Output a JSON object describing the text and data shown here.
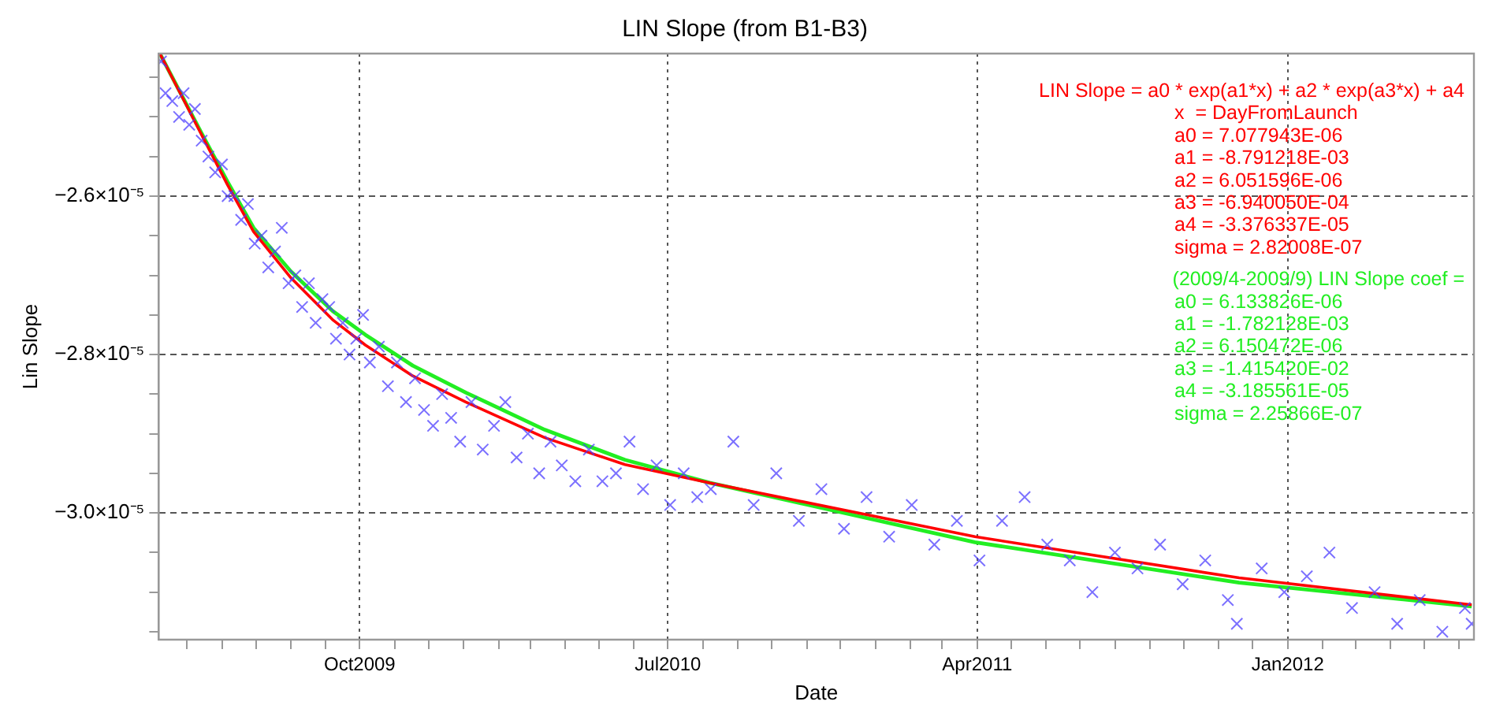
{
  "chart_data": {
    "type": "scatter",
    "title": "LIN Slope (from B1-B3)",
    "xlabel": "Date",
    "ylabel": "Lin Slope",
    "xlim": [
      "2009-04-06",
      "2012-06-14"
    ],
    "xticks": [
      {
        "value": "2009-05",
        "label": null
      },
      {
        "value": "2009-06",
        "label": null
      },
      {
        "value": "2009-07",
        "label": null
      },
      {
        "value": "2009-08",
        "label": null
      },
      {
        "value": "2009-09",
        "label": null
      },
      {
        "value": "2009-10",
        "label": "Oct2009"
      },
      {
        "value": "2009-11",
        "label": null
      },
      {
        "value": "2009-12",
        "label": null
      },
      {
        "value": "2010-01",
        "label": null
      },
      {
        "value": "2010-02",
        "label": null
      },
      {
        "value": "2010-03",
        "label": null
      },
      {
        "value": "2010-04",
        "label": null
      },
      {
        "value": "2010-05",
        "label": null
      },
      {
        "value": "2010-06",
        "label": null
      },
      {
        "value": "2010-07",
        "label": "Jul2010"
      },
      {
        "value": "2010-08",
        "label": null
      },
      {
        "value": "2010-09",
        "label": null
      },
      {
        "value": "2010-10",
        "label": null
      },
      {
        "value": "2010-11",
        "label": null
      },
      {
        "value": "2010-12",
        "label": null
      },
      {
        "value": "2011-01",
        "label": null
      },
      {
        "value": "2011-02",
        "label": null
      },
      {
        "value": "2011-03",
        "label": null
      },
      {
        "value": "2011-04",
        "label": "Apr2011"
      },
      {
        "value": "2011-05",
        "label": null
      },
      {
        "value": "2011-06",
        "label": null
      },
      {
        "value": "2011-07",
        "label": null
      },
      {
        "value": "2011-08",
        "label": null
      },
      {
        "value": "2011-09",
        "label": null
      },
      {
        "value": "2011-10",
        "label": null
      },
      {
        "value": "2011-11",
        "label": null
      },
      {
        "value": "2011-12",
        "label": null
      },
      {
        "value": "2012-01",
        "label": "Jan2012"
      },
      {
        "value": "2012-02",
        "label": null
      },
      {
        "value": "2012-03",
        "label": null
      },
      {
        "value": "2012-04",
        "label": null
      },
      {
        "value": "2012-05",
        "label": null
      },
      {
        "value": "2012-06",
        "label": null
      }
    ],
    "ylim": [
      -3.16e-05,
      -2.42e-05
    ],
    "yticks": [
      {
        "value": -2.45e-05,
        "label": null
      },
      {
        "value": -2.5e-05,
        "label": null
      },
      {
        "value": -2.55e-05,
        "label": null
      },
      {
        "value": -2.6e-05,
        "label": "−2.6×10⁻⁵"
      },
      {
        "value": -2.65e-05,
        "label": null
      },
      {
        "value": -2.7e-05,
        "label": null
      },
      {
        "value": -2.75e-05,
        "label": null
      },
      {
        "value": -2.8e-05,
        "label": "−2.8×10⁻⁵"
      },
      {
        "value": -2.85e-05,
        "label": null
      },
      {
        "value": -2.9e-05,
        "label": null
      },
      {
        "value": -2.95e-05,
        "label": null
      },
      {
        "value": -3e-05,
        "label": "−3.0×10⁻⁵"
      },
      {
        "value": -3.05e-05,
        "label": null
      },
      {
        "value": -3.1e-05,
        "label": null
      },
      {
        "value": -3.15e-05,
        "label": null
      }
    ],
    "grid": true,
    "series": [
      {
        "type": "scatter",
        "color": "#4b3cff",
        "marker": "cross",
        "x": [
          "2009-04-08",
          "2009-04-12",
          "2009-04-18",
          "2009-04-24",
          "2009-04-28",
          "2009-05-03",
          "2009-05-08",
          "2009-05-14",
          "2009-05-20",
          "2009-05-26",
          "2009-06-01",
          "2009-06-06",
          "2009-06-12",
          "2009-06-18",
          "2009-06-24",
          "2009-06-30",
          "2009-07-06",
          "2009-07-12",
          "2009-07-18",
          "2009-07-24",
          "2009-07-30",
          "2009-08-05",
          "2009-08-11",
          "2009-08-17",
          "2009-08-23",
          "2009-08-29",
          "2009-09-04",
          "2009-09-10",
          "2009-09-16",
          "2009-09-22",
          "2009-09-28",
          "2009-10-04",
          "2009-10-10",
          "2009-10-18",
          "2009-10-26",
          "2009-11-03",
          "2009-11-11",
          "2009-11-19",
          "2009-11-27",
          "2009-12-05",
          "2009-12-13",
          "2009-12-21",
          "2009-12-29",
          "2010-01-08",
          "2010-01-18",
          "2010-01-28",
          "2010-02-07",
          "2010-02-17",
          "2010-02-27",
          "2010-03-09",
          "2010-03-19",
          "2010-03-29",
          "2010-04-10",
          "2010-04-22",
          "2010-05-04",
          "2010-05-16",
          "2010-05-28",
          "2010-06-09",
          "2010-06-21",
          "2010-07-03",
          "2010-07-15",
          "2010-07-27",
          "2010-08-08",
          "2010-08-28",
          "2010-09-15",
          "2010-10-05",
          "2010-10-25",
          "2010-11-14",
          "2010-12-04",
          "2010-12-24",
          "2011-01-13",
          "2011-02-02",
          "2011-02-22",
          "2011-03-14",
          "2011-04-03",
          "2011-04-23",
          "2011-05-13",
          "2011-06-02",
          "2011-06-22",
          "2011-07-12",
          "2011-08-01",
          "2011-08-21",
          "2011-09-10",
          "2011-09-30",
          "2011-10-20",
          "2011-11-09",
          "2011-11-17",
          "2011-12-09",
          "2011-12-29",
          "2012-01-18",
          "2012-02-07",
          "2012-02-27",
          "2012-03-18",
          "2012-04-07",
          "2012-04-27",
          "2012-05-17",
          "2012-06-06",
          "2012-06-12"
        ],
        "values": [
          -2.43e-05,
          -2.47e-05,
          -2.48e-05,
          -2.5e-05,
          -2.47e-05,
          -2.51e-05,
          -2.49e-05,
          -2.53e-05,
          -2.55e-05,
          -2.57e-05,
          -2.56e-05,
          -2.6e-05,
          -2.6e-05,
          -2.63e-05,
          -2.61e-05,
          -2.66e-05,
          -2.65e-05,
          -2.69e-05,
          -2.67e-05,
          -2.64e-05,
          -2.71e-05,
          -2.7e-05,
          -2.74e-05,
          -2.71e-05,
          -2.76e-05,
          -2.73e-05,
          -2.74e-05,
          -2.78e-05,
          -2.76e-05,
          -2.8e-05,
          -2.78e-05,
          -2.75e-05,
          -2.81e-05,
          -2.79e-05,
          -2.84e-05,
          -2.81e-05,
          -2.86e-05,
          -2.83e-05,
          -2.87e-05,
          -2.89e-05,
          -2.85e-05,
          -2.88e-05,
          -2.91e-05,
          -2.86e-05,
          -2.92e-05,
          -2.89e-05,
          -2.86e-05,
          -2.93e-05,
          -2.9e-05,
          -2.95e-05,
          -2.91e-05,
          -2.94e-05,
          -2.96e-05,
          -2.92e-05,
          -2.96e-05,
          -2.95e-05,
          -2.91e-05,
          -2.97e-05,
          -2.94e-05,
          -2.99e-05,
          -2.95e-05,
          -2.98e-05,
          -2.97e-05,
          -2.91e-05,
          -2.99e-05,
          -2.95e-05,
          -3.01e-05,
          -2.97e-05,
          -3.02e-05,
          -2.98e-05,
          -3.03e-05,
          -2.99e-05,
          -3.04e-05,
          -3.01e-05,
          -3.06e-05,
          -3.01e-05,
          -2.98e-05,
          -3.04e-05,
          -3.06e-05,
          -3.1e-05,
          -3.05e-05,
          -3.07e-05,
          -3.04e-05,
          -3.09e-05,
          -3.06e-05,
          -3.11e-05,
          -3.14e-05,
          -3.07e-05,
          -3.1e-05,
          -3.08e-05,
          -3.05e-05,
          -3.12e-05,
          -3.1e-05,
          -3.14e-05,
          -3.11e-05,
          -3.15e-05,
          -3.12e-05,
          -3.14e-05
        ]
      },
      {
        "type": "line",
        "color": "#ff0000",
        "marker": "none",
        "x": [
          "2009-04-07",
          "2009-05-13",
          "2009-06-06",
          "2009-06-29",
          "2009-08-01",
          "2009-09-07",
          "2009-10-06",
          "2009-11-17",
          "2010-01-03",
          "2010-03-14",
          "2010-05-24",
          "2010-08-07",
          "2011-03-30",
          "2011-11-19",
          "2012-06-12"
        ],
        "values": [
          -2.42e-05,
          -2.52e-05,
          -2.586e-05,
          -2.645e-05,
          -2.703e-05,
          -2.756e-05,
          -2.788e-05,
          -2.827e-05,
          -2.86e-05,
          -2.905e-05,
          -2.939e-05,
          -2.962e-05,
          -3.03e-05,
          -3.082e-05,
          -3.116e-05
        ]
      },
      {
        "type": "line",
        "color": "#22ee22",
        "marker": "none",
        "x": [
          "2009-04-07",
          "2009-05-13",
          "2009-06-06",
          "2009-06-29",
          "2009-08-01",
          "2009-09-07",
          "2009-10-06",
          "2009-11-17",
          "2010-01-03",
          "2010-03-14",
          "2010-05-24",
          "2010-08-07",
          "2011-03-30",
          "2011-11-19",
          "2012-06-12"
        ],
        "values": [
          -2.42e-05,
          -2.518e-05,
          -2.582e-05,
          -2.64e-05,
          -2.695e-05,
          -2.745e-05,
          -2.775e-05,
          -2.814e-05,
          -2.848e-05,
          -2.895e-05,
          -2.933e-05,
          -2.962e-05,
          -3.037e-05,
          -3.088e-05,
          -3.118e-05
        ]
      }
    ],
    "annotations": [
      "LIN Slope = a0 * exp(a1*x) + a2 * exp(a3*x) + a4",
      "x  = DayFromLaunch",
      "a0 = 7.077943E-06",
      "a1 = -8.791218E-03",
      "a2 = 6.051596E-06",
      "a3 = -6.940050E-04",
      "a4 = -3.376337E-05",
      "sigma = 2.82008E-07",
      "(2009/4-2009/9) LIN Slope coef =",
      "a0 = 6.133826E-06",
      "a1 = -1.782128E-03",
      "a2 = 6.150472E-06",
      "a3 = -1.415420E-02",
      "a4 = -3.185561E-05",
      "sigma = 2.25866E-07"
    ]
  }
}
